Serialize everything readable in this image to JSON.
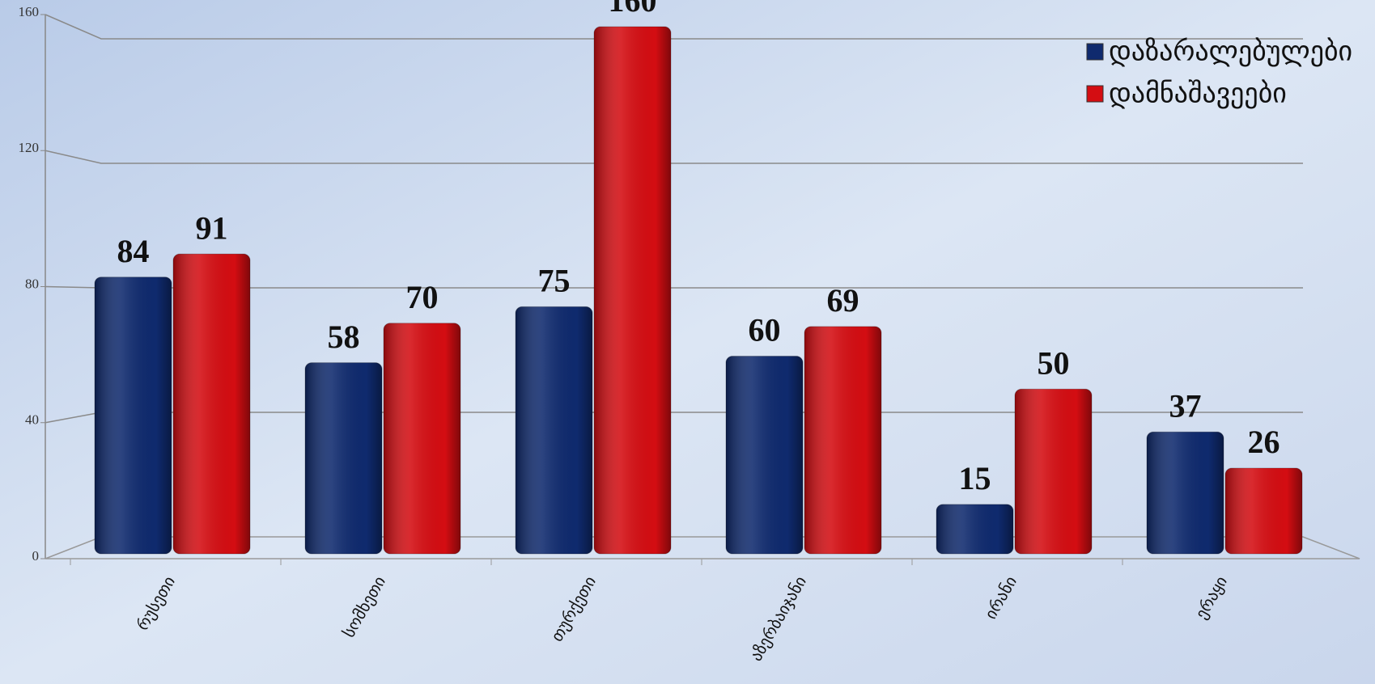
{
  "chart_data": {
    "type": "bar",
    "categories": [
      "რუსეთი",
      "სომხეთი",
      "თურქეთი",
      "აზერბაიჯანი",
      "ირანი",
      "ერაყი"
    ],
    "series": [
      {
        "name": "დაზარალებულები",
        "color": "#0f2a6e",
        "values": [
          84,
          58,
          75,
          60,
          15,
          37
        ]
      },
      {
        "name": "დამნაშავეები",
        "color": "#d40d12",
        "values": [
          91,
          70,
          160,
          69,
          50,
          26
        ]
      }
    ],
    "ylim": [
      0,
      160
    ],
    "yticks": [
      0,
      40,
      80,
      120,
      160
    ],
    "grid": true,
    "legend": "top-right"
  }
}
